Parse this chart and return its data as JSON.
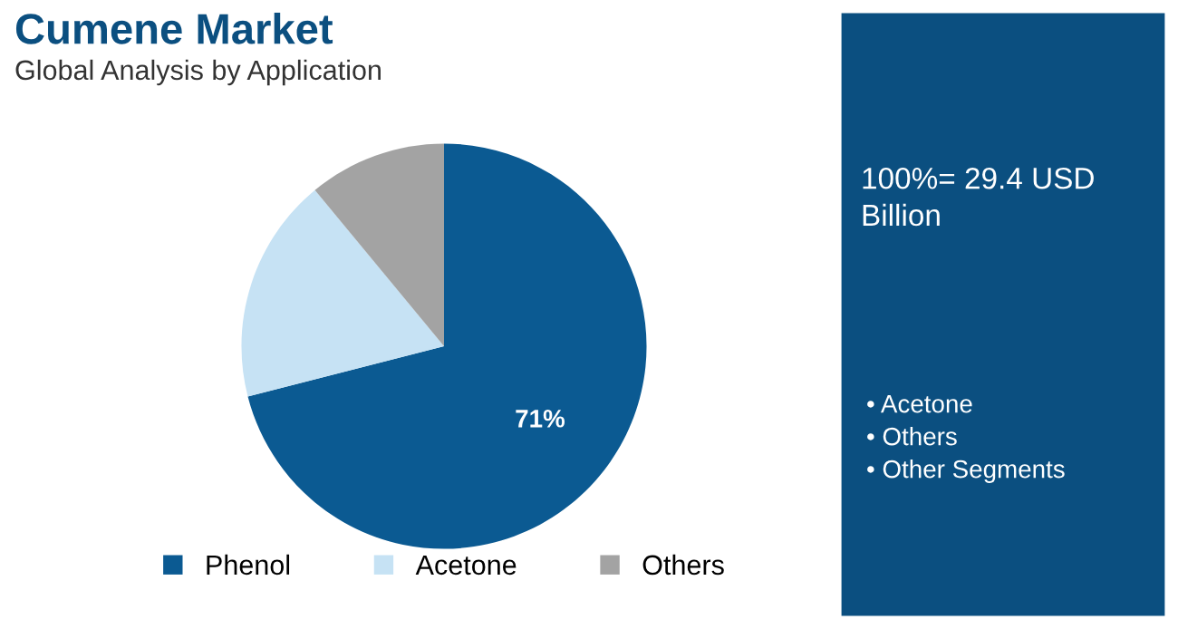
{
  "chart_data": {
    "type": "pie",
    "title": "Cumene Market",
    "subtitle": "Global Analysis by Application",
    "categories": [
      "Phenol",
      "Acetone",
      "Others"
    ],
    "values": [
      71,
      18,
      11
    ],
    "colors": [
      "#0b5a92",
      "#c6e2f4",
      "#a3a3a3"
    ],
    "value_labels": [
      "71%",
      null,
      null
    ],
    "legend": "bottom",
    "annotations": [
      "100%= 29.4 USD Billion",
      "• Acetone",
      "• Others",
      "• Other Segments"
    ]
  }
}
